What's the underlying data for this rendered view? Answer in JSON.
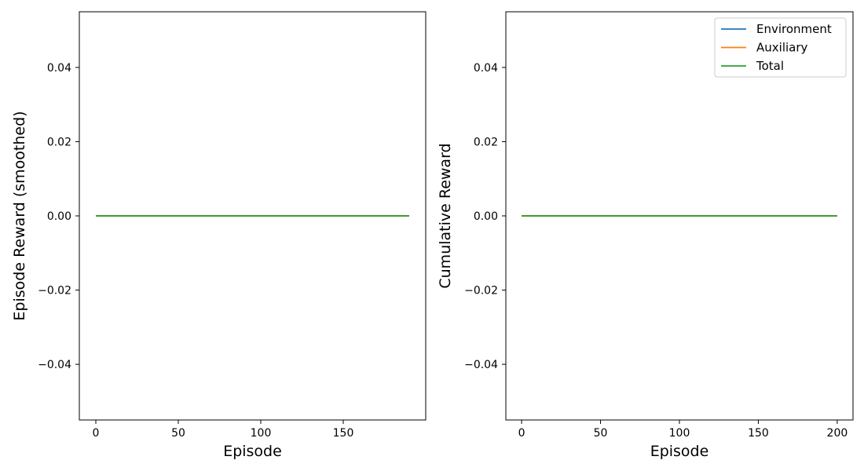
{
  "chart_data": [
    {
      "type": "line",
      "xlabel": "Episode",
      "ylabel": "Episode Reward (smoothed)",
      "xlim": [
        -10,
        200
      ],
      "ylim": [
        -0.055,
        0.055
      ],
      "xticks": [
        0,
        50,
        100,
        150
      ],
      "yticks": [
        -0.04,
        -0.02,
        0.0,
        0.02,
        0.04
      ],
      "x_tick_labels": [
        "0",
        "50",
        "100",
        "150"
      ],
      "y_tick_labels": [
        "−0.04",
        "−0.02",
        "0.00",
        "0.02",
        "0.04"
      ],
      "grid": false,
      "legend": null,
      "series": [
        {
          "name": "Environment",
          "color": "#1f77b4",
          "x": [
            0,
            190
          ],
          "y": [
            0,
            0
          ]
        },
        {
          "name": "Auxiliary",
          "color": "#ff7f0e",
          "x": [
            0,
            190
          ],
          "y": [
            0,
            0
          ]
        },
        {
          "name": "Total",
          "color": "#2ca02c",
          "x": [
            0,
            190
          ],
          "y": [
            0,
            0
          ]
        }
      ]
    },
    {
      "type": "line",
      "xlabel": "Episode",
      "ylabel": "Cumulative Reward",
      "xlim": [
        -10,
        210
      ],
      "ylim": [
        -0.055,
        0.055
      ],
      "xticks": [
        0,
        50,
        100,
        150,
        200
      ],
      "yticks": [
        -0.04,
        -0.02,
        0.0,
        0.02,
        0.04
      ],
      "x_tick_labels": [
        "0",
        "50",
        "100",
        "150",
        "200"
      ],
      "y_tick_labels": [
        "−0.04",
        "−0.02",
        "0.00",
        "0.02",
        "0.04"
      ],
      "grid": false,
      "legend": "top-right",
      "series": [
        {
          "name": "Environment",
          "color": "#1f77b4",
          "x": [
            0,
            200
          ],
          "y": [
            0,
            0
          ]
        },
        {
          "name": "Auxiliary",
          "color": "#ff7f0e",
          "x": [
            0,
            200
          ],
          "y": [
            0,
            0
          ]
        },
        {
          "name": "Total",
          "color": "#2ca02c",
          "x": [
            0,
            200
          ],
          "y": [
            0,
            0
          ]
        }
      ]
    }
  ]
}
